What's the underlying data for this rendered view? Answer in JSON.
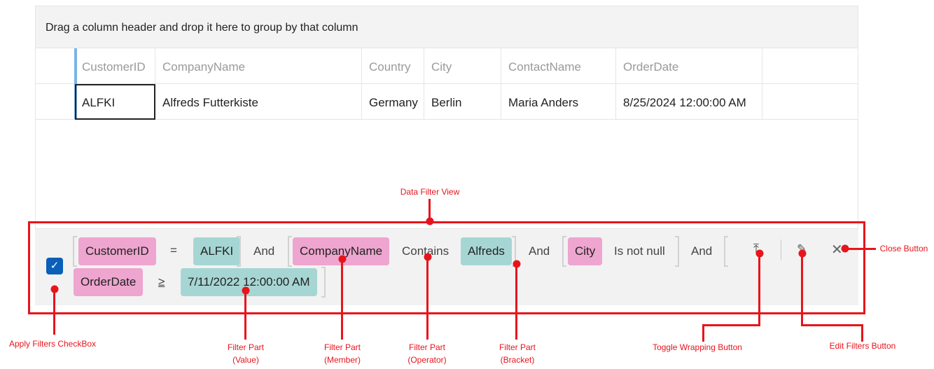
{
  "group_panel": {
    "text": "Drag a column header and drop it here to group by that column"
  },
  "columns": [
    "CustomerID",
    "CompanyName",
    "Country",
    "City",
    "ContactName",
    "OrderDate"
  ],
  "rows": [
    [
      "ALFKI",
      "Alfreds Futterkiste",
      "Germany",
      "Berlin",
      "Maria Anders",
      "8/25/2024 12:00:00 AM"
    ]
  ],
  "filter": {
    "apply_checked": true,
    "line1": {
      "m1": "CustomerID",
      "op1": "=",
      "v1": "ALFKI",
      "and1": "And",
      "m2": "CompanyName",
      "op2": "Contains",
      "v2": "Alfreds",
      "and2": "And",
      "m3": "City",
      "op3": "Is not null",
      "and3": "And"
    },
    "line2": {
      "m4": "OrderDate",
      "op4": "≥",
      "v4": "7/11/2022 12:00:00 AM"
    }
  },
  "annotations": {
    "data_filter_view": "Data Filter View",
    "apply": "Apply Filters CheckBox",
    "value": [
      "Filter Part",
      "(Value)"
    ],
    "member": [
      "Filter Part",
      "(Member)"
    ],
    "operator": [
      "Filter Part",
      "(Operator)"
    ],
    "bracket": [
      "Filter Part",
      "(Bracket)"
    ],
    "toggle": "Toggle Wrapping Button",
    "edit": "Edit Filters Button",
    "close": "Close Button"
  },
  "colors": {
    "member": "#eea5cf",
    "value": "#a6d6d4",
    "annotation": "#e8141c",
    "checkbox": "#0a5fb8"
  }
}
